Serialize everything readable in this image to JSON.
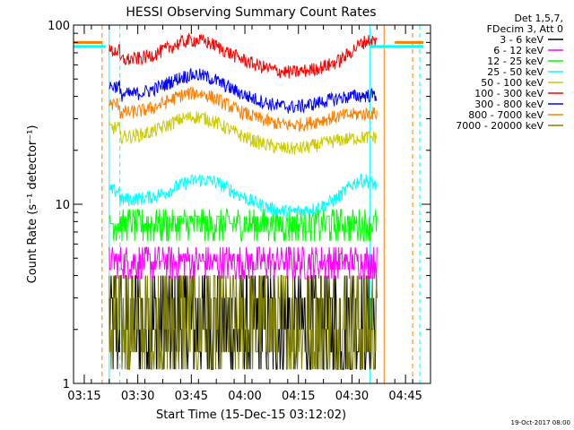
{
  "chart_data": {
    "type": "line",
    "title": "HESSI Observing Summary Count Rates",
    "xlabel": "Start Time (15-Dec-15 03:12:02)",
    "ylabel": "Count Rate (s⁻¹ detector⁻¹)",
    "yscale": "log",
    "ylim": [
      1,
      100
    ],
    "xlim": [
      "03:12",
      "04:52"
    ],
    "x_ticks": [
      "03:15",
      "03:30",
      "03:45",
      "04:00",
      "04:15",
      "04:30",
      "04:45"
    ],
    "y_ticks": [
      "1",
      "10",
      "100"
    ],
    "legend_header": [
      "Det 1,5,7,",
      "FDecim 3, Att 0"
    ],
    "legend_position": "top-right, outside plot",
    "footer_date": "19-Oct-2017 08:00",
    "data_window": [
      "03:22",
      "04:37"
    ],
    "series": [
      {
        "name": "3 - 6 keV",
        "color": "#000000",
        "approx_level": 3.0,
        "noise": "high, binned 1.2-4"
      },
      {
        "name": "6 - 12 keV",
        "color": "#ff00ff",
        "approx_level": 4.8,
        "noise": "step levels 3-6"
      },
      {
        "name": "12 - 25 keV",
        "color": "#00ff00",
        "approx_level": 7.8,
        "noise": "step levels 6-9"
      },
      {
        "name": "25 - 50 keV",
        "color": "#00ffff",
        "approx_level": 12.5,
        "peaks": [
          "03:48",
          "04:33"
        ]
      },
      {
        "name": "50 - 100 keV",
        "color": "#cccc00",
        "approx_level": 28,
        "peaks": [
          "03:46"
        ]
      },
      {
        "name": "100 - 300 keV",
        "color": "#ff0000",
        "approx_level": 75,
        "peaks": [
          "03:46",
          "04:35"
        ]
      },
      {
        "name": "300 - 800 keV",
        "color": "#0000ff",
        "approx_level": 48,
        "peaks": [
          "03:46"
        ]
      },
      {
        "name": "800 - 7000 keV",
        "color": "#ff8000",
        "approx_level": 38,
        "peaks": [
          "03:46"
        ]
      },
      {
        "name": "7000 - 20000 keV",
        "color": "#808000",
        "approx_level": 2.5,
        "noise": "high, binned 1.2-4"
      }
    ],
    "attenuator_lines": {
      "color": "#00ffff",
      "level": 76,
      "spans": [
        [
          "03:12",
          "03:21"
        ],
        [
          "04:35",
          "04:50"
        ]
      ]
    },
    "saa_lines": {
      "color": "#ff8000",
      "level": 80,
      "spans": [
        [
          "03:12",
          "03:20"
        ],
        [
          "04:42",
          "04:50"
        ]
      ]
    },
    "vertical_markers": [
      {
        "time": "03:20",
        "color": "#ff8000",
        "style": "dashed"
      },
      {
        "time": "03:22",
        "color": "#00ffff",
        "style": "solid"
      },
      {
        "time": "03:25",
        "color": "#00ffff",
        "style": "dashed"
      },
      {
        "time": "04:35",
        "color": "#00ffff",
        "style": "solid"
      },
      {
        "time": "04:39",
        "color": "#ff8000",
        "style": "solid"
      },
      {
        "time": "04:47",
        "color": "#ff8000",
        "style": "dashed"
      },
      {
        "time": "04:49",
        "color": "#00ffff",
        "style": "dashed"
      }
    ]
  }
}
